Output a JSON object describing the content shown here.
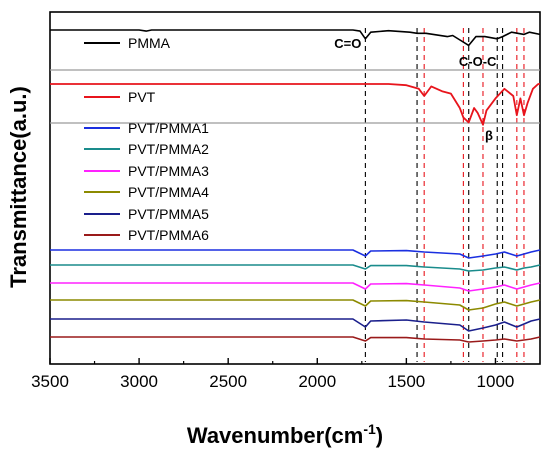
{
  "chart_data": {
    "type": "line",
    "xlabel": "Wavenumber(cm",
    "xlabel_sup": "-1",
    "xlabel_close": ")",
    "ylabel": "Transmittance(a.u.)",
    "xlim": [
      3500,
      750
    ],
    "x_direction": "reversed",
    "xticks": [
      3500,
      3000,
      2500,
      2000,
      1500,
      1000
    ],
    "ytick_labels_shown": false,
    "grid": false,
    "legend_placement": "inline-left",
    "colors": {
      "PMMA": "#000000",
      "PVT": "#e8141c",
      "PVT/PMMA1": "#1a2fe0",
      "PVT/PMMA2": "#1a8c8c",
      "PVT/PMMA3": "#ff22ff",
      "PVT/PMMA4": "#8c8a00",
      "PVT/PMMA5": "#1a1f8c",
      "PVT/PMMA6": "#9a1a1a",
      "separator": "#9a9a9a",
      "black_ref_line": "#000000",
      "red_ref_line": "#e8141c"
    },
    "reference_lines": {
      "black": [
        1730,
        1440,
        1150,
        990,
        960
      ],
      "red": [
        1400,
        1180,
        1070,
        880,
        840
      ]
    },
    "annotations": [
      {
        "text": "C=O",
        "x": 1730,
        "color": "#000000"
      },
      {
        "text": "C-O-C",
        "x": 1100,
        "color": "#000000"
      },
      {
        "text": "β",
        "x": 1070,
        "color": "#e8141c"
      }
    ],
    "series": [
      {
        "name": "PMMA",
        "x": [
          3500,
          3000,
          2960,
          2930,
          2500,
          1800,
          1760,
          1730,
          1700,
          1600,
          1480,
          1440,
          1390,
          1270,
          1240,
          1190,
          1150,
          1110,
          1060,
          990,
          960,
          910,
          840,
          810,
          750
        ],
        "y": [
          0,
          0,
          -0.5,
          0,
          0,
          0,
          -0.5,
          -4,
          -1,
          -0.3,
          -1,
          -1.5,
          -1.5,
          -3,
          -2.5,
          -5,
          -7,
          -3,
          -3,
          -4,
          -3,
          -1,
          -2,
          -1,
          -2
        ]
      },
      {
        "name": "PVT",
        "x": [
          3500,
          2500,
          1800,
          1600,
          1500,
          1430,
          1400,
          1360,
          1300,
          1250,
          1200,
          1180,
          1150,
          1120,
          1100,
          1070,
          1050,
          1000,
          950,
          900,
          880,
          860,
          840,
          820,
          790,
          760,
          750
        ],
        "y": [
          0,
          0,
          0,
          0,
          -0.5,
          -2,
          -5,
          -1,
          -3,
          -4,
          -10,
          -14,
          -16,
          -10,
          -12,
          -17,
          -11,
          -6,
          -2,
          -5,
          -13,
          -6,
          -13,
          -8,
          -2,
          0,
          0
        ]
      },
      {
        "name": "PVT/PMMA1",
        "x": [
          3500,
          1800,
          1730,
          1700,
          1500,
          1400,
          1200,
          1150,
          1070,
          1000,
          950,
          880,
          840,
          800,
          750
        ],
        "y": [
          0,
          0,
          -3,
          -0.5,
          -0.3,
          -1,
          -2,
          -4,
          -3,
          -2,
          -1,
          -3,
          -2,
          -1,
          0
        ]
      },
      {
        "name": "PVT/PMMA2",
        "x": [
          3500,
          1800,
          1730,
          1700,
          1500,
          1400,
          1200,
          1150,
          1070,
          1000,
          950,
          880,
          840,
          800,
          750
        ],
        "y": [
          0,
          0,
          -2,
          -0.3,
          -0.3,
          -1,
          -2,
          -3,
          -2.5,
          -1.5,
          -1,
          -2.5,
          -1.5,
          -1,
          0
        ]
      },
      {
        "name": "PVT/PMMA3",
        "x": [
          3500,
          1800,
          1730,
          1700,
          1500,
          1400,
          1200,
          1150,
          1070,
          1000,
          950,
          880,
          840,
          800,
          750
        ],
        "y": [
          0,
          0,
          -3,
          -0.5,
          -0.3,
          -1,
          -2.5,
          -4,
          -3,
          -2,
          -1,
          -3,
          -2,
          -1,
          0
        ]
      },
      {
        "name": "PVT/PMMA4",
        "x": [
          3500,
          1800,
          1730,
          1700,
          1500,
          1400,
          1200,
          1150,
          1070,
          1000,
          950,
          880,
          840,
          800,
          750
        ],
        "y": [
          0,
          0,
          -3,
          -0.5,
          -0.3,
          -1,
          -2.5,
          -5,
          -4,
          -2,
          -1,
          -3,
          -2,
          -1,
          0
        ]
      },
      {
        "name": "PVT/PMMA5",
        "x": [
          3500,
          1800,
          1730,
          1700,
          1500,
          1400,
          1200,
          1150,
          1070,
          1000,
          950,
          880,
          840,
          800,
          750
        ],
        "y": [
          0,
          0,
          -4,
          -1,
          -0.5,
          -1.5,
          -3,
          -6,
          -4.5,
          -3,
          -1.5,
          -4,
          -2.5,
          -1,
          0
        ]
      },
      {
        "name": "PVT/PMMA6",
        "x": [
          3500,
          1800,
          1730,
          1700,
          1500,
          1400,
          1200,
          1150,
          1070,
          1000,
          950,
          880,
          840,
          800,
          750
        ],
        "y": [
          0,
          0,
          -2,
          -0.3,
          -0.3,
          -1,
          -1.5,
          -2.5,
          -2,
          -1.5,
          -1,
          -2,
          -1.5,
          -1,
          0
        ]
      }
    ]
  }
}
